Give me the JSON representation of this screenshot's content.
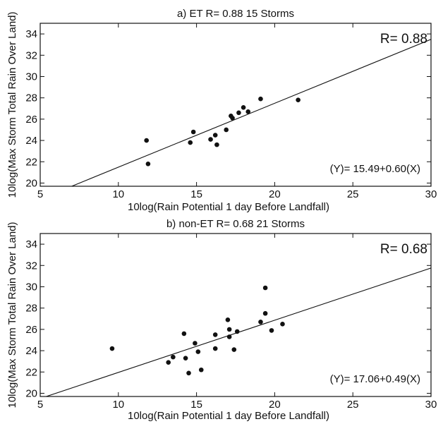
{
  "chart_data": [
    {
      "type": "scatter",
      "title": "a) ET  R= 0.88  15 Storms",
      "xlabel": "10log(Rain Potential 1 day Before Landfall)",
      "ylabel": "10log(Max Storm Total Rain Over Land)",
      "xlim": [
        5,
        30
      ],
      "ylim": [
        19.7,
        35
      ],
      "x_ticks": [
        5,
        10,
        15,
        20,
        25,
        30
      ],
      "y_ticks": [
        20,
        22,
        24,
        26,
        28,
        30,
        32,
        34
      ],
      "grid": false,
      "r_label": "R= 0.88",
      "equation": "(Y)= 15.49+0.60(X)",
      "fit": {
        "intercept": 15.49,
        "slope": 0.6
      },
      "points": [
        {
          "x": 11.8,
          "y": 24.0
        },
        {
          "x": 11.9,
          "y": 21.8
        },
        {
          "x": 14.6,
          "y": 23.8
        },
        {
          "x": 14.8,
          "y": 24.8
        },
        {
          "x": 15.9,
          "y": 24.1
        },
        {
          "x": 16.2,
          "y": 24.5
        },
        {
          "x": 16.3,
          "y": 23.6
        },
        {
          "x": 16.9,
          "y": 25.0
        },
        {
          "x": 17.2,
          "y": 26.3
        },
        {
          "x": 17.3,
          "y": 26.1
        },
        {
          "x": 17.7,
          "y": 26.6
        },
        {
          "x": 18.0,
          "y": 27.1
        },
        {
          "x": 18.3,
          "y": 26.7
        },
        {
          "x": 19.1,
          "y": 27.9
        },
        {
          "x": 21.5,
          "y": 27.8
        }
      ]
    },
    {
      "type": "scatter",
      "title": "b) non-ET  R= 0.68  21 Storms",
      "xlabel": "10log(Rain Potential 1 day Before Landfall)",
      "ylabel": "10log(Max Storm Total Rain Over Land)",
      "xlim": [
        5,
        30
      ],
      "ylim": [
        19.7,
        35
      ],
      "x_ticks": [
        5,
        10,
        15,
        20,
        25,
        30
      ],
      "y_ticks": [
        20,
        22,
        24,
        26,
        28,
        30,
        32,
        34
      ],
      "grid": false,
      "r_label": "R= 0.68",
      "equation": "(Y)= 17.06+0.49(X)",
      "fit": {
        "intercept": 17.06,
        "slope": 0.49
      },
      "points": [
        {
          "x": 9.6,
          "y": 24.2
        },
        {
          "x": 13.2,
          "y": 22.9
        },
        {
          "x": 13.5,
          "y": 23.4
        },
        {
          "x": 14.2,
          "y": 25.6
        },
        {
          "x": 14.3,
          "y": 23.3
        },
        {
          "x": 14.5,
          "y": 21.9
        },
        {
          "x": 14.9,
          "y": 24.7
        },
        {
          "x": 15.1,
          "y": 23.9
        },
        {
          "x": 15.3,
          "y": 22.2
        },
        {
          "x": 16.2,
          "y": 25.5
        },
        {
          "x": 16.2,
          "y": 24.2
        },
        {
          "x": 17.0,
          "y": 26.9
        },
        {
          "x": 17.1,
          "y": 25.3
        },
        {
          "x": 17.1,
          "y": 26.0
        },
        {
          "x": 17.4,
          "y": 24.1
        },
        {
          "x": 17.6,
          "y": 25.8
        },
        {
          "x": 19.1,
          "y": 26.7
        },
        {
          "x": 19.4,
          "y": 29.9
        },
        {
          "x": 19.4,
          "y": 27.5
        },
        {
          "x": 19.8,
          "y": 25.9
        },
        {
          "x": 20.5,
          "y": 26.5
        }
      ]
    }
  ]
}
